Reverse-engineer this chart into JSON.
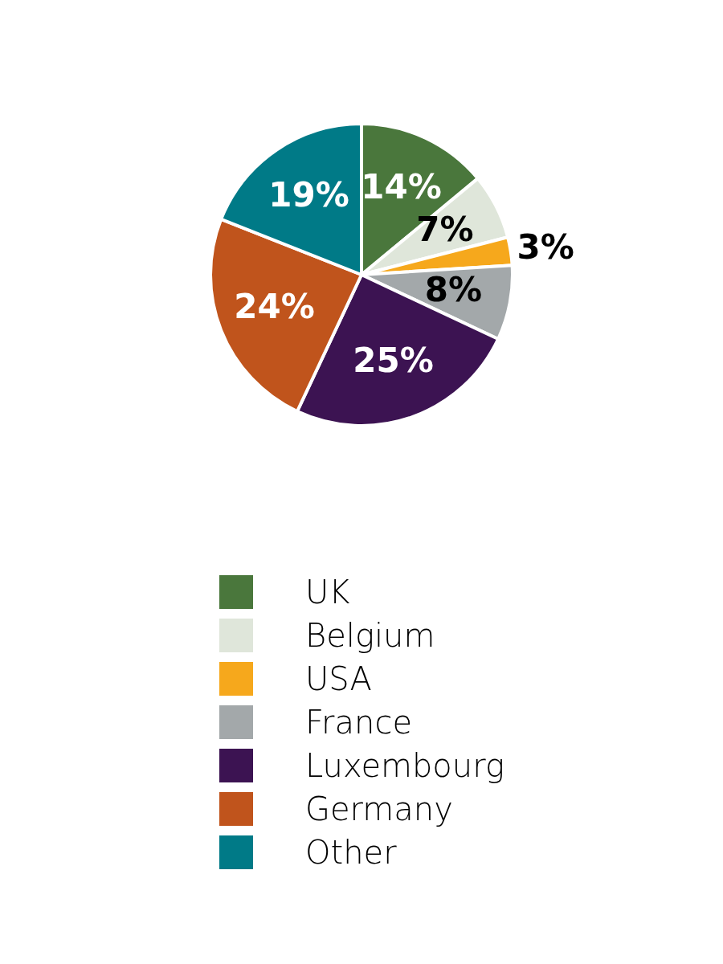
{
  "chart_data": {
    "type": "pie",
    "categories": [
      "UK",
      "Belgium",
      "USA",
      "France",
      "Luxembourg",
      "Germany",
      "Other"
    ],
    "values": [
      14,
      7,
      3,
      8,
      25,
      24,
      19
    ],
    "colors": [
      "#4a773c",
      "#dfe6da",
      "#f6a81c",
      "#a3a8aa",
      "#3c1352",
      "#c0541c",
      "#007a87"
    ],
    "value_labels": [
      "14%",
      "7%",
      "3%",
      "8%",
      "25%",
      "24%",
      "19%"
    ],
    "legend": "bottom"
  }
}
